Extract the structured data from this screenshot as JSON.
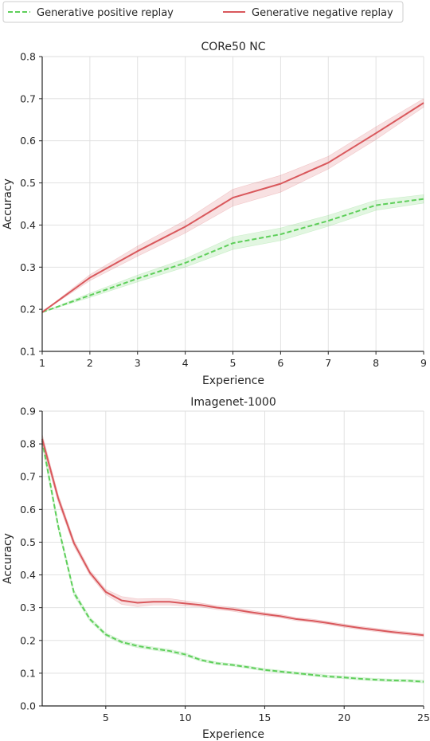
{
  "legend": {
    "entries": [
      "Generative positive replay",
      "Generative negative replay"
    ]
  },
  "colors": {
    "positive": "#5ecf5a",
    "negative": "#d9585c",
    "grid": "#dedede",
    "axis": "#262626"
  },
  "chart_data": [
    {
      "type": "line",
      "title": "CORe50 NC",
      "xlabel": "Experience",
      "ylabel": "Accuracy",
      "xlim": [
        1,
        9
      ],
      "ylim": [
        0.1,
        0.8
      ],
      "xticks": [
        1,
        2,
        3,
        4,
        5,
        6,
        7,
        8,
        9
      ],
      "yticks": [
        0.1,
        0.2,
        0.3,
        0.4,
        0.5,
        0.6,
        0.7,
        0.8
      ],
      "grid": true,
      "legend_position": "top, above plots",
      "series": [
        {
          "name": "Generative positive replay",
          "style": "dashed",
          "x": [
            1,
            2,
            3,
            4,
            5,
            6,
            7,
            8,
            9
          ],
          "y": [
            0.193,
            0.233,
            0.273,
            0.31,
            0.357,
            0.378,
            0.41,
            0.447,
            0.462
          ],
          "band": [
            0.0,
            0.005,
            0.008,
            0.01,
            0.015,
            0.015,
            0.013,
            0.012,
            0.01
          ]
        },
        {
          "name": "Generative negative replay",
          "style": "solid",
          "x": [
            1,
            2,
            3,
            4,
            5,
            6,
            7,
            8,
            9
          ],
          "y": [
            0.193,
            0.275,
            0.338,
            0.396,
            0.465,
            0.498,
            0.548,
            0.618,
            0.69
          ],
          "band": [
            0.0,
            0.007,
            0.012,
            0.015,
            0.02,
            0.02,
            0.015,
            0.015,
            0.01
          ]
        }
      ]
    },
    {
      "type": "line",
      "title": "Imagenet-1000",
      "xlabel": "Experience",
      "ylabel": "Accuracy",
      "xlim": [
        1,
        25
      ],
      "ylim": [
        0.0,
        0.9
      ],
      "xticks": [
        5,
        10,
        15,
        20,
        25
      ],
      "yticks": [
        0.0,
        0.1,
        0.2,
        0.3,
        0.4,
        0.5,
        0.6,
        0.7,
        0.8,
        0.9
      ],
      "grid": true,
      "series": [
        {
          "name": "Generative positive replay",
          "style": "dashed",
          "x": [
            1,
            2,
            3,
            4,
            5,
            6,
            7,
            8,
            9,
            10,
            11,
            12,
            13,
            14,
            15,
            16,
            17,
            18,
            19,
            20,
            21,
            22,
            23,
            24,
            25
          ],
          "y": [
            0.81,
            0.55,
            0.345,
            0.265,
            0.218,
            0.195,
            0.183,
            0.175,
            0.168,
            0.157,
            0.14,
            0.13,
            0.125,
            0.118,
            0.11,
            0.105,
            0.1,
            0.095,
            0.09,
            0.087,
            0.083,
            0.08,
            0.078,
            0.077,
            0.074
          ],
          "band": [
            0.015,
            0.01,
            0.008,
            0.006,
            0.005,
            0.005,
            0.005,
            0.005,
            0.005,
            0.005,
            0.004,
            0.004,
            0.004,
            0.004,
            0.004,
            0.004,
            0.004,
            0.004,
            0.004,
            0.004,
            0.004,
            0.004,
            0.004,
            0.004,
            0.004
          ]
        },
        {
          "name": "Generative negative replay",
          "style": "solid",
          "x": [
            1,
            2,
            3,
            4,
            5,
            6,
            7,
            8,
            9,
            10,
            11,
            12,
            13,
            14,
            15,
            16,
            17,
            18,
            19,
            20,
            21,
            22,
            23,
            24,
            25
          ],
          "y": [
            0.815,
            0.635,
            0.497,
            0.407,
            0.348,
            0.322,
            0.315,
            0.318,
            0.318,
            0.313,
            0.308,
            0.3,
            0.295,
            0.287,
            0.28,
            0.274,
            0.265,
            0.26,
            0.253,
            0.245,
            0.238,
            0.232,
            0.226,
            0.221,
            0.216
          ],
          "band": [
            0.015,
            0.012,
            0.01,
            0.008,
            0.008,
            0.012,
            0.012,
            0.01,
            0.01,
            0.008,
            0.006,
            0.006,
            0.006,
            0.006,
            0.005,
            0.005,
            0.005,
            0.005,
            0.005,
            0.005,
            0.005,
            0.005,
            0.005,
            0.005,
            0.005
          ]
        }
      ]
    }
  ]
}
